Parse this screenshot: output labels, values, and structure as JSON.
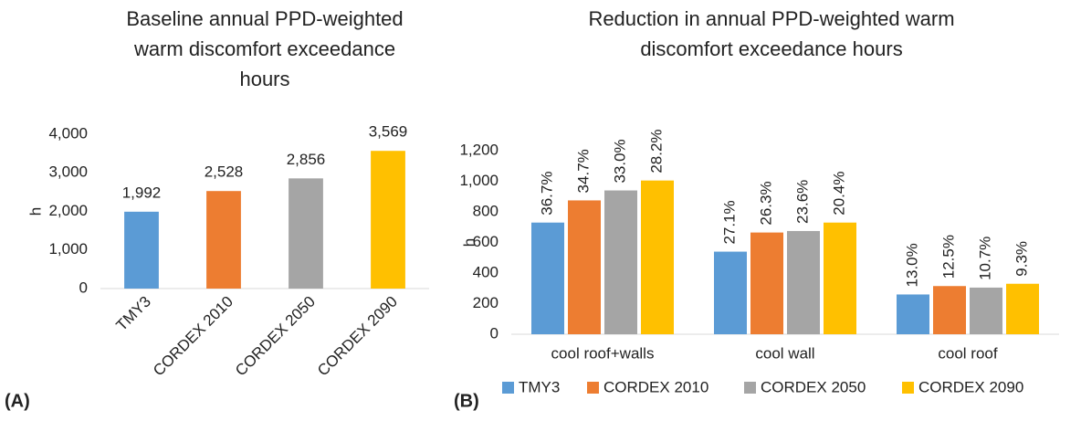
{
  "chart_data": [
    {
      "type": "bar",
      "panel_label": "(A)",
      "title": [
        "Baseline annual PPD-weighted",
        "warm discomfort exceedance",
        "hours"
      ],
      "y_label": "h",
      "categories": [
        "TMY3",
        "CORDEX 2010",
        "CORDEX 2050",
        "CORDEX 2090"
      ],
      "values": [
        1992,
        2528,
        2856,
        3569
      ],
      "value_labels": [
        "1,992",
        "2,528",
        "2,856",
        "3,569"
      ],
      "colors": [
        "#5b9bd5",
        "#ed7d31",
        "#a5a5a5",
        "#ffc000"
      ],
      "ylim": [
        0,
        4000
      ],
      "yticks": [
        0,
        {
          "value": 1000,
          "label": "1,000"
        },
        {
          "value": 2000,
          "label": "2,000"
        },
        {
          "value": 3000,
          "label": "3,000"
        },
        {
          "value": 4000,
          "label": "4,000"
        }
      ],
      "grid": false
    },
    {
      "type": "grouped_bar",
      "panel_label": "(B)",
      "title": [
        "Reduction in annual PPD-weighted warm",
        "discomfort exceedance hours"
      ],
      "y_label": "h",
      "categories": [
        "cool roof+walls",
        "cool wall",
        "cool roof"
      ],
      "series": [
        {
          "name": "TMY3",
          "color": "#5b9bd5",
          "values": [
            730,
            540,
            260
          ],
          "labels": [
            "36.7%",
            "27.1%",
            "13.0%"
          ]
        },
        {
          "name": "CORDEX 2010",
          "color": "#ed7d31",
          "values": [
            875,
            665,
            315
          ],
          "labels": [
            "34.7%",
            "26.3%",
            "12.5%"
          ]
        },
        {
          "name": "CORDEX 2050",
          "color": "#a5a5a5",
          "values": [
            940,
            675,
            305
          ],
          "labels": [
            "33.0%",
            "23.6%",
            "10.7%"
          ]
        },
        {
          "name": "CORDEX 2090",
          "color": "#ffc000",
          "values": [
            1005,
            730,
            330
          ],
          "labels": [
            "28.2%",
            "20.4%",
            "9.3%"
          ]
        }
      ],
      "ylim": [
        0,
        1200
      ],
      "yticks": [
        0,
        200,
        400,
        600,
        800,
        {
          "value": 1000,
          "label": "1,000"
        },
        {
          "value": 1200,
          "label": "1,200"
        }
      ],
      "legend": "bottom",
      "grid": false
    }
  ]
}
